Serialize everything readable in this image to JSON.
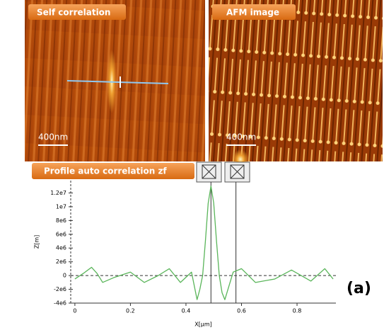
{
  "panels": [
    {
      "label": "Self correlation",
      "scale": "400nm"
    },
    {
      "label": "AFM image",
      "scale": "400nm"
    }
  ],
  "figure_label": "(a)",
  "chart_data": {
    "type": "line",
    "title": "Profile auto correlation zf",
    "x_label": "X[µm]",
    "y_label": "Z[m]",
    "x": [
      0,
      0.03,
      0.06,
      0.08,
      0.1,
      0.14,
      0.2,
      0.25,
      0.3,
      0.34,
      0.38,
      0.42,
      0.44,
      0.45,
      0.46,
      0.47,
      0.48,
      0.49,
      0.5,
      0.51,
      0.52,
      0.53,
      0.54,
      0.555,
      0.57,
      0.6,
      0.65,
      0.72,
      0.78,
      0.85,
      0.9,
      0.93
    ],
    "values": [
      -500000,
      300000,
      1200000,
      300000,
      -1000000,
      -300000,
      500000,
      -1000000,
      0,
      1000000,
      -1000000,
      500000,
      -3500000,
      -2000000,
      0,
      5000000,
      10500000,
      13000000,
      10500000,
      5000000,
      0,
      -2500000,
      -3500000,
      -1500000,
      500000,
      1000000,
      -1000000,
      -500000,
      800000,
      -800000,
      1000000,
      -500000
    ],
    "color": "#5ab55a",
    "cursors": [
      0.49,
      0.58
    ],
    "zero_line": true,
    "xlim": [
      -0.015,
      0.94
    ],
    "xticks": [
      0,
      0.2,
      0.4,
      0.6,
      0.8
    ],
    "ylim": [
      -4000000,
      13800000
    ],
    "yticks": [
      {
        "value": -4000000,
        "label": "-4e6"
      },
      {
        "value": -2000000,
        "label": "-2e6"
      },
      {
        "value": 0,
        "label": "0"
      },
      {
        "value": 2000000,
        "label": "2e6"
      },
      {
        "value": 4000000,
        "label": "4e6"
      },
      {
        "value": 6000000,
        "label": "6e6"
      },
      {
        "value": 8000000,
        "label": "8e6"
      },
      {
        "value": 10000000,
        "label": "1e7"
      },
      {
        "value": 12000000,
        "label": "1.2e7"
      }
    ]
  }
}
